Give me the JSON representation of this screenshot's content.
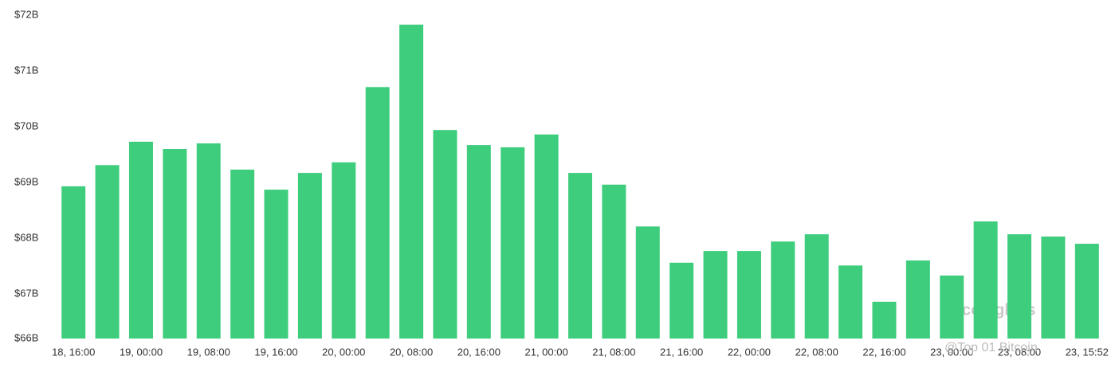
{
  "chart_data": {
    "type": "bar",
    "categories": [
      "18, 16:00",
      null,
      "19, 00:00",
      null,
      "19, 08:00",
      null,
      "19, 16:00",
      null,
      "20, 00:00",
      null,
      "20, 08:00",
      null,
      "20, 16:00",
      null,
      "21, 00:00",
      null,
      "21, 08:00",
      null,
      "21, 16:00",
      null,
      "22, 00:00",
      null,
      "22, 08:00",
      null,
      "22, 16:00",
      null,
      "23, 00:00",
      null,
      "23, 08:00",
      null,
      "23, 15:52"
    ],
    "values": [
      68.93,
      69.31,
      69.73,
      69.6,
      69.7,
      69.23,
      68.87,
      69.17,
      69.36,
      70.71,
      71.83,
      69.94,
      69.67,
      69.63,
      69.86,
      69.17,
      68.96,
      68.21,
      67.56,
      67.77,
      67.77,
      67.94,
      68.07,
      67.51,
      66.86,
      67.6,
      67.33,
      68.3,
      68.07,
      68.03,
      67.9
    ],
    "color": "#3ecd7d",
    "ylim": [
      66.2,
      72
    ],
    "yticks": [
      {
        "value": 66.2,
        "label": "$66B"
      },
      {
        "value": 67,
        "label": "$67B"
      },
      {
        "value": 68,
        "label": "$68B"
      },
      {
        "value": 69,
        "label": "$69B"
      },
      {
        "value": 70,
        "label": "$70B"
      },
      {
        "value": 71,
        "label": "$71B"
      },
      {
        "value": 72,
        "label": "$72B"
      }
    ],
    "watermarks": [
      "coinglass",
      "@Top 01 Bitcoin"
    ]
  }
}
